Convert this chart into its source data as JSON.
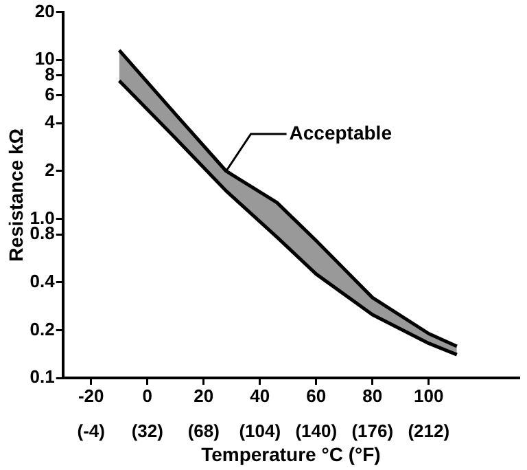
{
  "chart_data": {
    "type": "line",
    "xlabel": "Temperature °C (°F)",
    "ylabel": "Resistance kΩ",
    "log": "y",
    "grid": false,
    "legend": false,
    "marker": "none",
    "line_style": "solid",
    "x": [
      -10,
      8,
      28,
      46,
      60,
      80,
      100,
      110
    ],
    "series": [
      {
        "color": "#000000",
        "values": [
          11.5,
          5.0,
          2.0,
          1.27,
          0.73,
          0.32,
          0.19,
          0.158
        ]
      },
      {
        "color": "#000000",
        "values": [
          7.4,
          3.5,
          1.5,
          0.77,
          0.45,
          0.25,
          0.165,
          0.14
        ],
        "upper": [
          11.5,
          5.0,
          2.0,
          1.27,
          0.73,
          0.32,
          0.19,
          0.158
        ],
        "lower": [
          7.4,
          3.5,
          1.5,
          0.77,
          0.45,
          0.25,
          0.165,
          0.14
        ]
      }
    ],
    "xlim": [
      -30,
      132
    ],
    "ylim": [
      0.1,
      20
    ],
    "xticks": [
      -20,
      0,
      20,
      40,
      60,
      80,
      100
    ],
    "x2lim": [
      -22,
      269.6
    ],
    "x2ticks": [
      {
        "value": -4,
        "label": "(-4)"
      },
      {
        "value": 32,
        "label": "(32)"
      },
      {
        "value": 68,
        "label": "(68)"
      },
      {
        "value": 104,
        "label": "(104)"
      },
      {
        "value": 140,
        "label": "(140)"
      },
      {
        "value": 176,
        "label": "(176)"
      },
      {
        "value": 212,
        "label": "(212)"
      }
    ],
    "yticks": [
      0.1,
      0.2,
      0.4,
      0.8,
      {
        "value": 1,
        "label": "1.0"
      },
      2,
      4,
      6,
      8,
      10,
      20
    ],
    "annotations": [
      {
        "text": "Acceptable",
        "x": 28,
        "y": 2.0
      }
    ]
  }
}
